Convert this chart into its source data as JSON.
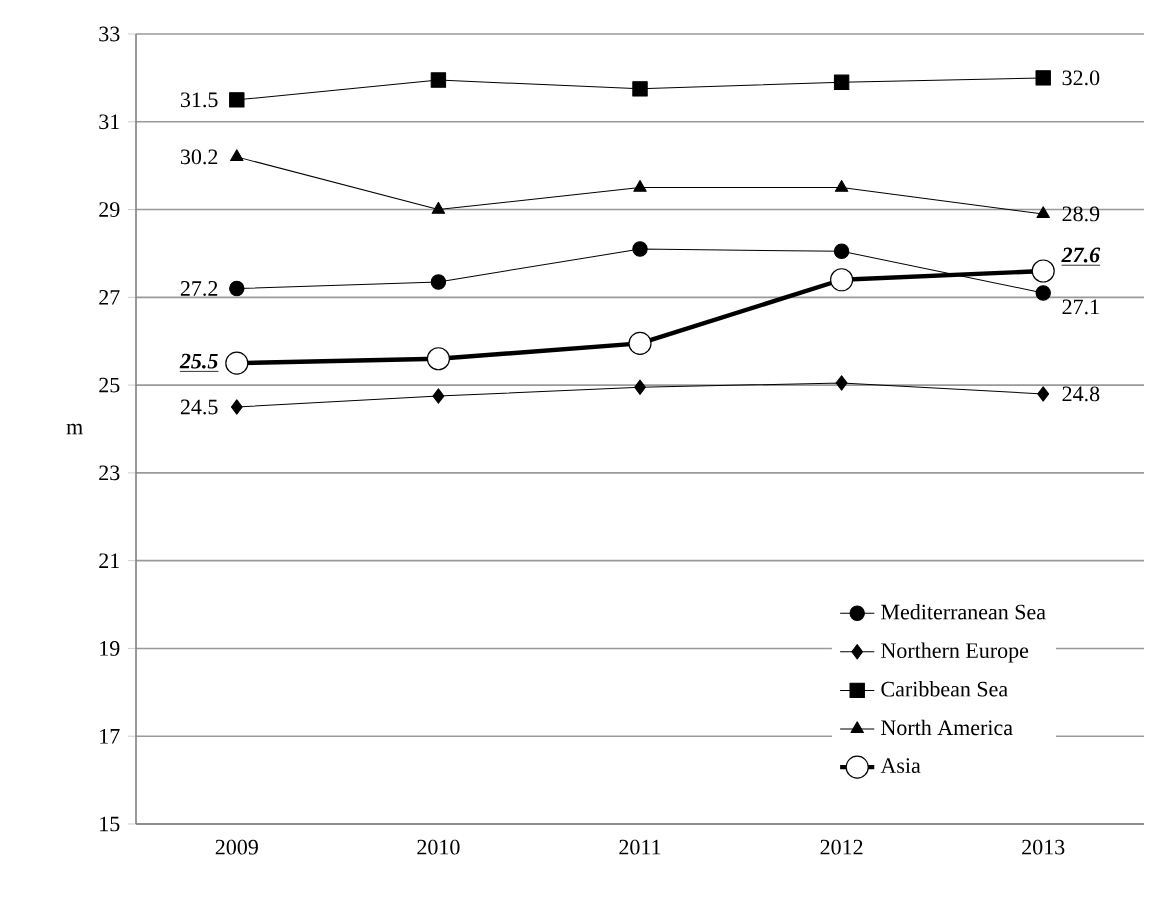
{
  "chart_data": {
    "type": "line",
    "ylabel": "m",
    "categories": [
      "2009",
      "2010",
      "2011",
      "2012",
      "2013"
    ],
    "ylim": [
      15,
      33
    ],
    "yticks": [
      15,
      17,
      19,
      21,
      23,
      25,
      27,
      29,
      31,
      33
    ],
    "grid": "y",
    "legend": "bottom right",
    "series": [
      {
        "name": "Mediterranean Sea",
        "color": "#000000",
        "marker": "circle",
        "values": [
          27.2,
          27.35,
          28.1,
          28.05,
          27.1
        ],
        "value_labels": [
          "27.2",
          null,
          null,
          null,
          "27.1"
        ]
      },
      {
        "name": "Northern Europe",
        "color": "#000000",
        "marker": "diamond",
        "values": [
          24.5,
          24.75,
          24.95,
          25.05,
          24.8
        ],
        "value_labels": [
          "24.5",
          null,
          null,
          null,
          "24.8"
        ]
      },
      {
        "name": "Caribbean Sea",
        "color": "#000000",
        "marker": "square",
        "values": [
          31.5,
          31.95,
          31.75,
          31.9,
          32.0
        ],
        "value_labels": [
          "31.5",
          null,
          null,
          null,
          "32.0"
        ]
      },
      {
        "name": "North America",
        "color": "#000000",
        "marker": "triangle",
        "values": [
          30.2,
          29.0,
          29.5,
          29.5,
          28.9
        ],
        "value_labels": [
          "30.2",
          null,
          null,
          null,
          "28.9"
        ]
      },
      {
        "name": "Asia",
        "color": "#000000",
        "marker": "circle",
        "values": [
          25.5,
          25.6,
          25.95,
          27.4,
          27.6
        ],
        "value_labels": [
          "25.5",
          null,
          null,
          null,
          "27.6"
        ]
      }
    ]
  }
}
